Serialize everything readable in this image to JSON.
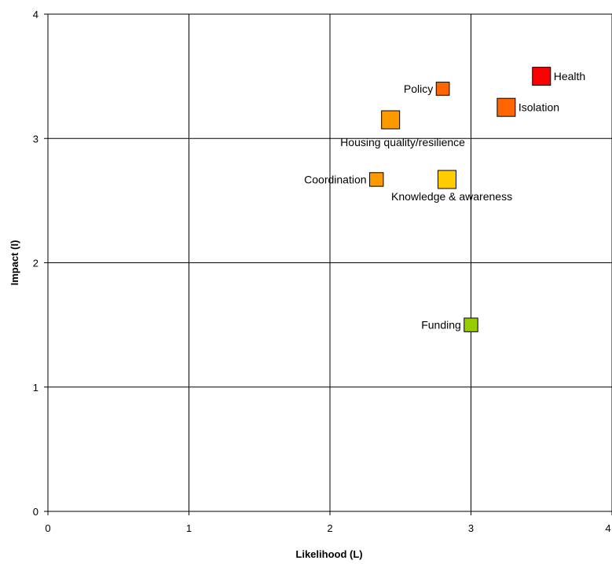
{
  "chart_data": {
    "type": "scatter",
    "title": "",
    "xlabel": "Likelihood (L)",
    "ylabel": "Impact (I)",
    "xlim": [
      0,
      4
    ],
    "ylim": [
      0,
      4
    ],
    "x_ticks": [
      "0",
      "1",
      "2",
      "3",
      "4"
    ],
    "y_ticks": [
      "0",
      "1",
      "2",
      "3",
      "4"
    ],
    "grid": true,
    "legend": "none",
    "points": [
      {
        "label": "Health",
        "x": 3.5,
        "y": 3.5,
        "size": 2.0,
        "color": "#ff0000",
        "label_pos": "right"
      },
      {
        "label": "Policy",
        "x": 2.8,
        "y": 3.4,
        "size": 1.1,
        "color": "#ff6600",
        "label_pos": "left"
      },
      {
        "label": "Isolation",
        "x": 3.25,
        "y": 3.25,
        "size": 2.0,
        "color": "#ff6600",
        "label_pos": "right"
      },
      {
        "label": "Housing quality/resilience",
        "x": 2.43,
        "y": 3.15,
        "size": 2.0,
        "color": "#ff9900",
        "label_pos": "below-right"
      },
      {
        "label": "Coordination",
        "x": 2.33,
        "y": 2.67,
        "size": 1.2,
        "color": "#ff9900",
        "label_pos": "left"
      },
      {
        "label": "Knowledge & awareness",
        "x": 2.83,
        "y": 2.67,
        "size": 2.0,
        "color": "#ffcc00",
        "label_pos": "below-right"
      },
      {
        "label": "Funding",
        "x": 3.0,
        "y": 1.5,
        "size": 1.2,
        "color": "#99cc00",
        "label_pos": "left"
      }
    ]
  }
}
